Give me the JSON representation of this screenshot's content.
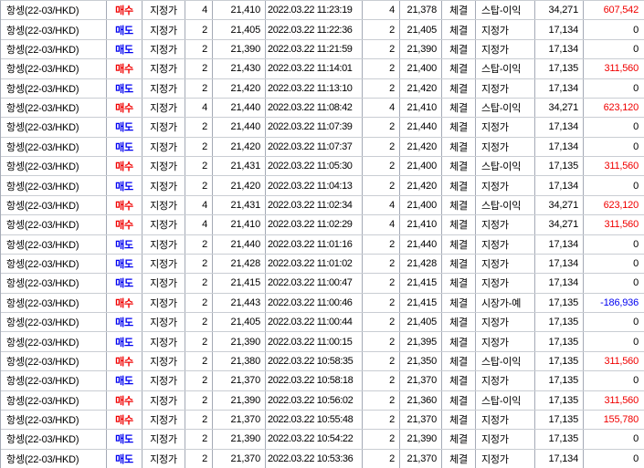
{
  "colors": {
    "buy": "#f00000",
    "sell": "#0000f0",
    "pnl_positive": "#f00000",
    "pnl_negative": "#0000f0",
    "grid_vertical": "#a4aab6",
    "grid_horizontal": "#c9cdd3",
    "background": "#ffffff",
    "text": "#000000"
  },
  "table": {
    "columns": [
      {
        "key": "instrument"
      },
      {
        "key": "side"
      },
      {
        "key": "order_type"
      },
      {
        "key": "order_qty"
      },
      {
        "key": "order_price"
      },
      {
        "key": "datetime"
      },
      {
        "key": "fill_qty"
      },
      {
        "key": "fill_price"
      },
      {
        "key": "status"
      },
      {
        "key": "exec_type"
      },
      {
        "key": "amount"
      },
      {
        "key": "pnl"
      }
    ],
    "rows": [
      {
        "instrument": "항셍(22-03/HKD)",
        "side": "매수",
        "side_color": "buy",
        "order_type": "지정가",
        "order_qty": "4",
        "order_price": "21,410",
        "datetime": "2022.03.22 11:23:19",
        "fill_qty": "4",
        "fill_price": "21,378",
        "status": "체결",
        "exec_type": "스탑-이익",
        "amount": "34,271",
        "pnl": "607,542",
        "pnl_color": "red"
      },
      {
        "instrument": "항셍(22-03/HKD)",
        "side": "매도",
        "side_color": "sell",
        "order_type": "지정가",
        "order_qty": "2",
        "order_price": "21,405",
        "datetime": "2022.03.22 11:22:36",
        "fill_qty": "2",
        "fill_price": "21,405",
        "status": "체결",
        "exec_type": "지정가",
        "amount": "17,134",
        "pnl": "0",
        "pnl_color": "black"
      },
      {
        "instrument": "항셍(22-03/HKD)",
        "side": "매도",
        "side_color": "sell",
        "order_type": "지정가",
        "order_qty": "2",
        "order_price": "21,390",
        "datetime": "2022.03.22 11:21:59",
        "fill_qty": "2",
        "fill_price": "21,390",
        "status": "체결",
        "exec_type": "지정가",
        "amount": "17,134",
        "pnl": "0",
        "pnl_color": "black"
      },
      {
        "instrument": "항셍(22-03/HKD)",
        "side": "매수",
        "side_color": "buy",
        "order_type": "지정가",
        "order_qty": "2",
        "order_price": "21,430",
        "datetime": "2022.03.22 11:14:01",
        "fill_qty": "2",
        "fill_price": "21,400",
        "status": "체결",
        "exec_type": "스탑-이익",
        "amount": "17,135",
        "pnl": "311,560",
        "pnl_color": "red"
      },
      {
        "instrument": "항셍(22-03/HKD)",
        "side": "매도",
        "side_color": "sell",
        "order_type": "지정가",
        "order_qty": "2",
        "order_price": "21,420",
        "datetime": "2022.03.22 11:13:10",
        "fill_qty": "2",
        "fill_price": "21,420",
        "status": "체결",
        "exec_type": "지정가",
        "amount": "17,134",
        "pnl": "0",
        "pnl_color": "black"
      },
      {
        "instrument": "항셍(22-03/HKD)",
        "side": "매수",
        "side_color": "buy",
        "order_type": "지정가",
        "order_qty": "4",
        "order_price": "21,440",
        "datetime": "2022.03.22 11:08:42",
        "fill_qty": "4",
        "fill_price": "21,410",
        "status": "체결",
        "exec_type": "스탑-이익",
        "amount": "34,271",
        "pnl": "623,120",
        "pnl_color": "red"
      },
      {
        "instrument": "항셍(22-03/HKD)",
        "side": "매도",
        "side_color": "sell",
        "order_type": "지정가",
        "order_qty": "2",
        "order_price": "21,440",
        "datetime": "2022.03.22 11:07:39",
        "fill_qty": "2",
        "fill_price": "21,440",
        "status": "체결",
        "exec_type": "지정가",
        "amount": "17,134",
        "pnl": "0",
        "pnl_color": "black"
      },
      {
        "instrument": "항셍(22-03/HKD)",
        "side": "매도",
        "side_color": "sell",
        "order_type": "지정가",
        "order_qty": "2",
        "order_price": "21,420",
        "datetime": "2022.03.22 11:07:37",
        "fill_qty": "2",
        "fill_price": "21,420",
        "status": "체결",
        "exec_type": "지정가",
        "amount": "17,134",
        "pnl": "0",
        "pnl_color": "black"
      },
      {
        "instrument": "항셍(22-03/HKD)",
        "side": "매수",
        "side_color": "buy",
        "order_type": "지정가",
        "order_qty": "2",
        "order_price": "21,431",
        "datetime": "2022.03.22 11:05:30",
        "fill_qty": "2",
        "fill_price": "21,400",
        "status": "체결",
        "exec_type": "스탑-이익",
        "amount": "17,135",
        "pnl": "311,560",
        "pnl_color": "red"
      },
      {
        "instrument": "항셍(22-03/HKD)",
        "side": "매도",
        "side_color": "sell",
        "order_type": "지정가",
        "order_qty": "2",
        "order_price": "21,420",
        "datetime": "2022.03.22 11:04:13",
        "fill_qty": "2",
        "fill_price": "21,420",
        "status": "체결",
        "exec_type": "지정가",
        "amount": "17,134",
        "pnl": "0",
        "pnl_color": "black"
      },
      {
        "instrument": "항셍(22-03/HKD)",
        "side": "매수",
        "side_color": "buy",
        "order_type": "지정가",
        "order_qty": "4",
        "order_price": "21,431",
        "datetime": "2022.03.22 11:02:34",
        "fill_qty": "4",
        "fill_price": "21,400",
        "status": "체결",
        "exec_type": "스탑-이익",
        "amount": "34,271",
        "pnl": "623,120",
        "pnl_color": "red"
      },
      {
        "instrument": "항셍(22-03/HKD)",
        "side": "매수",
        "side_color": "buy",
        "order_type": "지정가",
        "order_qty": "4",
        "order_price": "21,410",
        "datetime": "2022.03.22 11:02:29",
        "fill_qty": "4",
        "fill_price": "21,410",
        "status": "체결",
        "exec_type": "지정가",
        "amount": "34,271",
        "pnl": "311,560",
        "pnl_color": "red"
      },
      {
        "instrument": "항셍(22-03/HKD)",
        "side": "매도",
        "side_color": "sell",
        "order_type": "지정가",
        "order_qty": "2",
        "order_price": "21,440",
        "datetime": "2022.03.22 11:01:16",
        "fill_qty": "2",
        "fill_price": "21,440",
        "status": "체결",
        "exec_type": "지정가",
        "amount": "17,134",
        "pnl": "0",
        "pnl_color": "black"
      },
      {
        "instrument": "항셍(22-03/HKD)",
        "side": "매도",
        "side_color": "sell",
        "order_type": "지정가",
        "order_qty": "2",
        "order_price": "21,428",
        "datetime": "2022.03.22 11:01:02",
        "fill_qty": "2",
        "fill_price": "21,428",
        "status": "체결",
        "exec_type": "지정가",
        "amount": "17,134",
        "pnl": "0",
        "pnl_color": "black"
      },
      {
        "instrument": "항셍(22-03/HKD)",
        "side": "매도",
        "side_color": "sell",
        "order_type": "지정가",
        "order_qty": "2",
        "order_price": "21,415",
        "datetime": "2022.03.22 11:00:47",
        "fill_qty": "2",
        "fill_price": "21,415",
        "status": "체결",
        "exec_type": "지정가",
        "amount": "17,134",
        "pnl": "0",
        "pnl_color": "black"
      },
      {
        "instrument": "항셍(22-03/HKD)",
        "side": "매수",
        "side_color": "buy",
        "order_type": "지정가",
        "order_qty": "2",
        "order_price": "21,443",
        "datetime": "2022.03.22 11:00:46",
        "fill_qty": "2",
        "fill_price": "21,415",
        "status": "체결",
        "exec_type": "시장가-예",
        "amount": "17,135",
        "pnl": "-186,936",
        "pnl_color": "blue"
      },
      {
        "instrument": "항셍(22-03/HKD)",
        "side": "매도",
        "side_color": "sell",
        "order_type": "지정가",
        "order_qty": "2",
        "order_price": "21,405",
        "datetime": "2022.03.22 11:00:44",
        "fill_qty": "2",
        "fill_price": "21,405",
        "status": "체결",
        "exec_type": "지정가",
        "amount": "17,135",
        "pnl": "0",
        "pnl_color": "black"
      },
      {
        "instrument": "항셍(22-03/HKD)",
        "side": "매도",
        "side_color": "sell",
        "order_type": "지정가",
        "order_qty": "2",
        "order_price": "21,390",
        "datetime": "2022.03.22 11:00:15",
        "fill_qty": "2",
        "fill_price": "21,395",
        "status": "체결",
        "exec_type": "지정가",
        "amount": "17,135",
        "pnl": "0",
        "pnl_color": "black"
      },
      {
        "instrument": "항셍(22-03/HKD)",
        "side": "매수",
        "side_color": "buy",
        "order_type": "지정가",
        "order_qty": "2",
        "order_price": "21,380",
        "datetime": "2022.03.22 10:58:35",
        "fill_qty": "2",
        "fill_price": "21,350",
        "status": "체결",
        "exec_type": "스탑-이익",
        "amount": "17,135",
        "pnl": "311,560",
        "pnl_color": "red"
      },
      {
        "instrument": "항셍(22-03/HKD)",
        "side": "매도",
        "side_color": "sell",
        "order_type": "지정가",
        "order_qty": "2",
        "order_price": "21,370",
        "datetime": "2022.03.22 10:58:18",
        "fill_qty": "2",
        "fill_price": "21,370",
        "status": "체결",
        "exec_type": "지정가",
        "amount": "17,135",
        "pnl": "0",
        "pnl_color": "black"
      },
      {
        "instrument": "항셍(22-03/HKD)",
        "side": "매수",
        "side_color": "buy",
        "order_type": "지정가",
        "order_qty": "2",
        "order_price": "21,390",
        "datetime": "2022.03.22 10:56:02",
        "fill_qty": "2",
        "fill_price": "21,360",
        "status": "체결",
        "exec_type": "스탑-이익",
        "amount": "17,135",
        "pnl": "311,560",
        "pnl_color": "red"
      },
      {
        "instrument": "항셍(22-03/HKD)",
        "side": "매수",
        "side_color": "buy",
        "order_type": "지정가",
        "order_qty": "2",
        "order_price": "21,370",
        "datetime": "2022.03.22 10:55:48",
        "fill_qty": "2",
        "fill_price": "21,370",
        "status": "체결",
        "exec_type": "지정가",
        "amount": "17,135",
        "pnl": "155,780",
        "pnl_color": "red"
      },
      {
        "instrument": "항셍(22-03/HKD)",
        "side": "매도",
        "side_color": "sell",
        "order_type": "지정가",
        "order_qty": "2",
        "order_price": "21,390",
        "datetime": "2022.03.22 10:54:22",
        "fill_qty": "2",
        "fill_price": "21,390",
        "status": "체결",
        "exec_type": "지정가",
        "amount": "17,135",
        "pnl": "0",
        "pnl_color": "black"
      },
      {
        "instrument": "항셍(22-03/HKD)",
        "side": "매도",
        "side_color": "sell",
        "order_type": "지정가",
        "order_qty": "2",
        "order_price": "21,370",
        "datetime": "2022.03.22 10:53:36",
        "fill_qty": "2",
        "fill_price": "21,370",
        "status": "체결",
        "exec_type": "지정가",
        "amount": "17,134",
        "pnl": "0",
        "pnl_color": "black"
      }
    ]
  }
}
